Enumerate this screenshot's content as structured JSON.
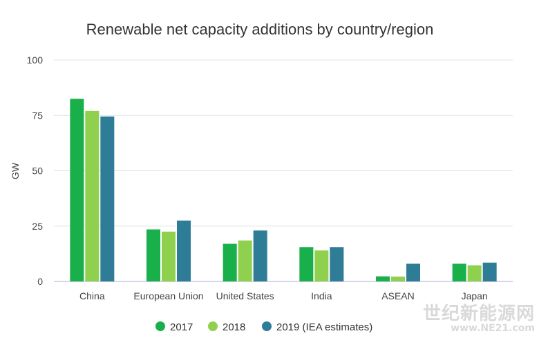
{
  "chart_data": {
    "type": "bar",
    "title": "Renewable net capacity additions by country/region",
    "ylabel": "GW",
    "xlabel": "",
    "ylim": [
      0,
      100
    ],
    "yticks": [
      0,
      25,
      50,
      75,
      100
    ],
    "grid": true,
    "legend_position": "bottom",
    "categories": [
      "China",
      "European Union",
      "United States",
      "India",
      "ASEAN",
      "Japan"
    ],
    "series": [
      {
        "name": "2017",
        "color": "#19b04b",
        "values": [
          82.5,
          23.5,
          17,
          15.5,
          2.3,
          8
        ]
      },
      {
        "name": "2018",
        "color": "#8fd14f",
        "values": [
          77,
          22.5,
          18.5,
          14,
          2.2,
          7.3
        ]
      },
      {
        "name": "2019 (IEA estimates)",
        "color": "#2e7c96",
        "values": [
          74.5,
          27.5,
          23,
          15.5,
          8,
          8.5
        ]
      }
    ]
  },
  "colors": {
    "grid": "#e3e3e3",
    "axis": "#c6c9e6",
    "text": "#444444",
    "title": "#333333"
  },
  "watermark": {
    "line1": "世纪新能源网",
    "line2": "www.NE21.com"
  }
}
